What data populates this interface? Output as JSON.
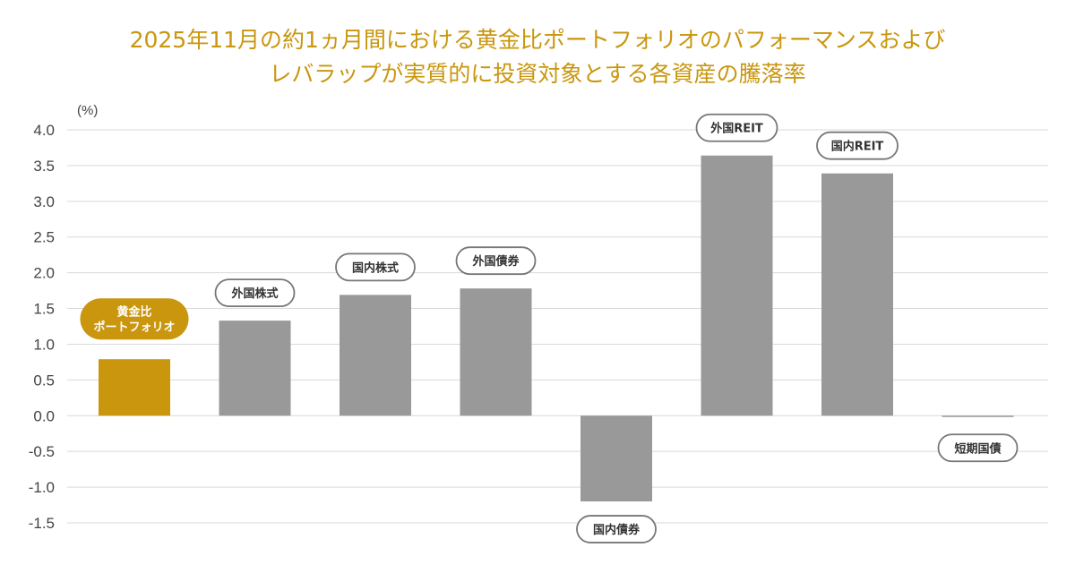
{
  "title": {
    "line1": "2025年11月の約1ヵ月間における黄金比ポートフォリオのパフォーマンスおよび",
    "line2": "レバラップが実質的に投資対象とする各資産の騰落率"
  },
  "colors": {
    "title": "#c9960e",
    "highlight": "#c9960e",
    "bar": "#999999",
    "grid": "#d9d9d9"
  },
  "chart_data": {
    "type": "bar",
    "unit_label": "(%)",
    "ylim": [
      -1.5,
      4.0
    ],
    "yticks": [
      "4.0",
      "3.5",
      "3.0",
      "2.5",
      "2.0",
      "1.5",
      "1.0",
      "0.5",
      "0.0",
      "-0.5",
      "-1.0",
      "-1.5"
    ],
    "grid": true,
    "categories": [
      [
        "黄金比",
        "ポートフォリオ"
      ],
      [
        "外国株式"
      ],
      [
        "国内株式"
      ],
      [
        "外国債券"
      ],
      [
        "国内債券"
      ],
      [
        "外国REIT"
      ],
      [
        "国内REIT"
      ],
      [
        "短期国債"
      ]
    ],
    "values": [
      0.79,
      1.33,
      1.69,
      1.78,
      -1.2,
      3.64,
      3.39,
      -0.01
    ],
    "highlight_index": 0
  }
}
